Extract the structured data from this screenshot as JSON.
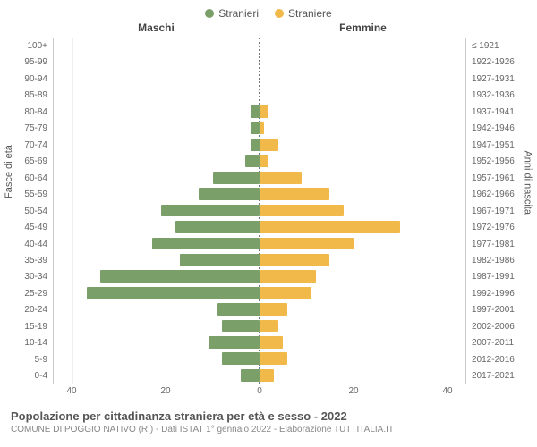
{
  "legend": {
    "male": {
      "label": "Stranieri",
      "color": "#7a9f69"
    },
    "female": {
      "label": "Straniere",
      "color": "#f0b94a"
    }
  },
  "headers": {
    "left": "Maschi",
    "right": "Femmine"
  },
  "axis_left_title": "Fasce di età",
  "axis_right_title": "Anni di nascita",
  "title": "Popolazione per cittadinanza straniera per età e sesso - 2022",
  "subtitle": "COMUNE DI POGGIO NATIVO (RI) - Dati ISTAT 1° gennaio 2022 - Elaborazione TUTTITALIA.IT",
  "xmax": 44,
  "xticks_left": [
    40,
    20,
    0
  ],
  "xticks_right": [
    0,
    20,
    40
  ],
  "background_color": "#ffffff",
  "grid_color": "#eeeeee",
  "center_line_color": "#777777",
  "groups": [
    {
      "age": "0-4",
      "birth": "2017-2021",
      "m": 4,
      "f": 3
    },
    {
      "age": "5-9",
      "birth": "2012-2016",
      "m": 8,
      "f": 6
    },
    {
      "age": "10-14",
      "birth": "2007-2011",
      "m": 11,
      "f": 5
    },
    {
      "age": "15-19",
      "birth": "2002-2006",
      "m": 8,
      "f": 4
    },
    {
      "age": "20-24",
      "birth": "1997-2001",
      "m": 9,
      "f": 6
    },
    {
      "age": "25-29",
      "birth": "1992-1996",
      "m": 37,
      "f": 11
    },
    {
      "age": "30-34",
      "birth": "1987-1991",
      "m": 34,
      "f": 12
    },
    {
      "age": "35-39",
      "birth": "1982-1986",
      "m": 17,
      "f": 15
    },
    {
      "age": "40-44",
      "birth": "1977-1981",
      "m": 23,
      "f": 20
    },
    {
      "age": "45-49",
      "birth": "1972-1976",
      "m": 18,
      "f": 30
    },
    {
      "age": "50-54",
      "birth": "1967-1971",
      "m": 21,
      "f": 18
    },
    {
      "age": "55-59",
      "birth": "1962-1966",
      "m": 13,
      "f": 15
    },
    {
      "age": "60-64",
      "birth": "1957-1961",
      "m": 10,
      "f": 9
    },
    {
      "age": "65-69",
      "birth": "1952-1956",
      "m": 3,
      "f": 2
    },
    {
      "age": "70-74",
      "birth": "1947-1951",
      "m": 2,
      "f": 4
    },
    {
      "age": "75-79",
      "birth": "1942-1946",
      "m": 2,
      "f": 1
    },
    {
      "age": "80-84",
      "birth": "1937-1941",
      "m": 2,
      "f": 2
    },
    {
      "age": "85-89",
      "birth": "1932-1936",
      "m": 0,
      "f": 0
    },
    {
      "age": "90-94",
      "birth": "1927-1931",
      "m": 0,
      "f": 0
    },
    {
      "age": "95-99",
      "birth": "1922-1926",
      "m": 0,
      "f": 0
    },
    {
      "age": "100+",
      "birth": "≤ 1921",
      "m": 0,
      "f": 0
    }
  ]
}
